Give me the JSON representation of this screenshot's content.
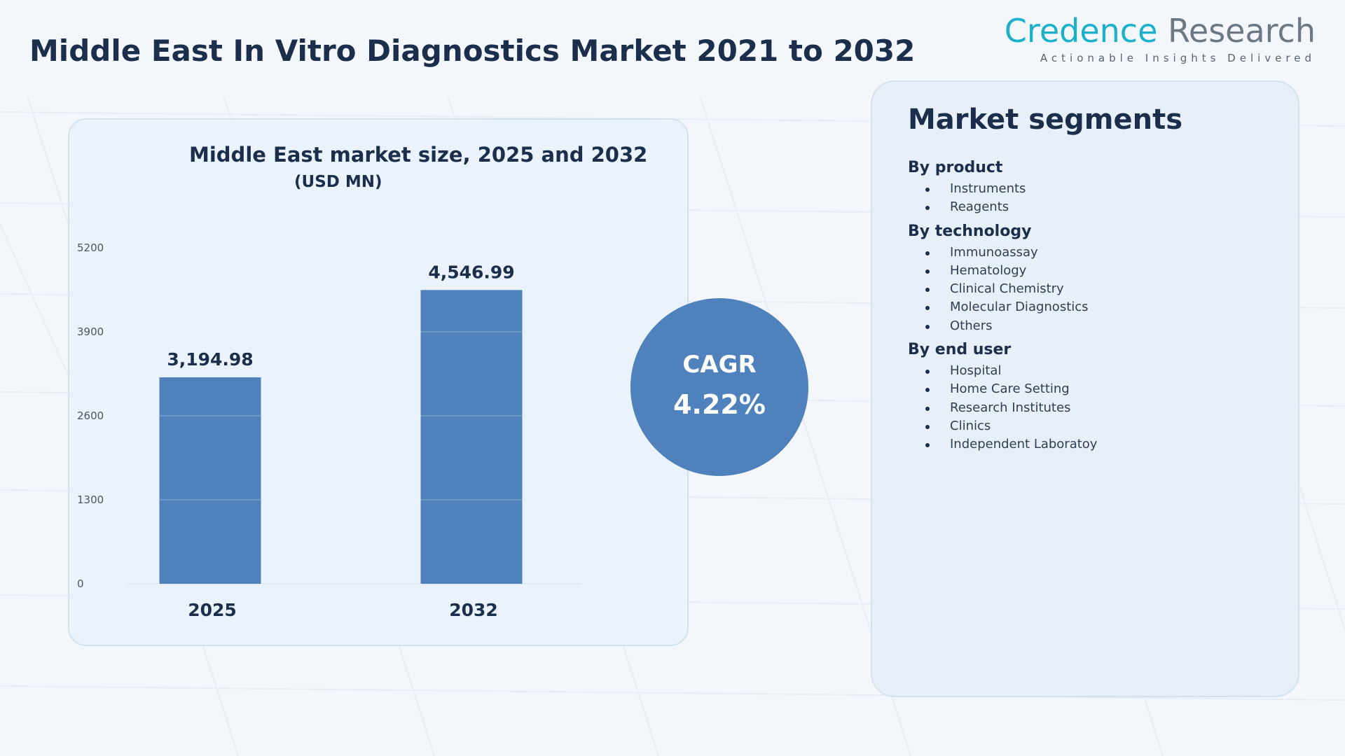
{
  "page": {
    "title": "Middle East In Vitro Diagnostics Market 2021 to 2032"
  },
  "logo": {
    "name_part1": "Credence",
    "name_part2": "Research",
    "tagline": "Actionable Insights Delivered"
  },
  "colors": {
    "bar": "#4f81bd",
    "title": "#1b2e4b",
    "brand_teal": "#1bb0cc",
    "brand_grey": "#6d7883"
  },
  "chart_data": {
    "type": "bar",
    "title": "Middle East market size, 2025 and 2032",
    "subtitle": "(USD MN)",
    "categories": [
      "2025",
      "2032"
    ],
    "values": [
      3194.98,
      4546.99
    ],
    "value_labels": [
      "3,194.98",
      "4,546.99"
    ],
    "yticks": [
      0,
      1300,
      2600,
      3900,
      5200
    ],
    "ylim": [
      0,
      5200
    ],
    "xlabel": "",
    "ylabel": "",
    "grid": true,
    "legend": "none"
  },
  "cagr": {
    "label": "CAGR",
    "value": "4.22%"
  },
  "segments": {
    "title": "Market segments",
    "groups": [
      {
        "title": "By product",
        "items": [
          "Instruments",
          "Reagents"
        ]
      },
      {
        "title": "By technology",
        "items": [
          "Immunoassay",
          "Hematology",
          "Clinical Chemistry",
          "Molecular Diagnostics",
          "Others"
        ]
      },
      {
        "title": "By end user",
        "items": [
          "Hospital",
          "Home Care Setting",
          "Research Institutes",
          "Clinics",
          "Independent Laboratoy"
        ]
      }
    ]
  }
}
